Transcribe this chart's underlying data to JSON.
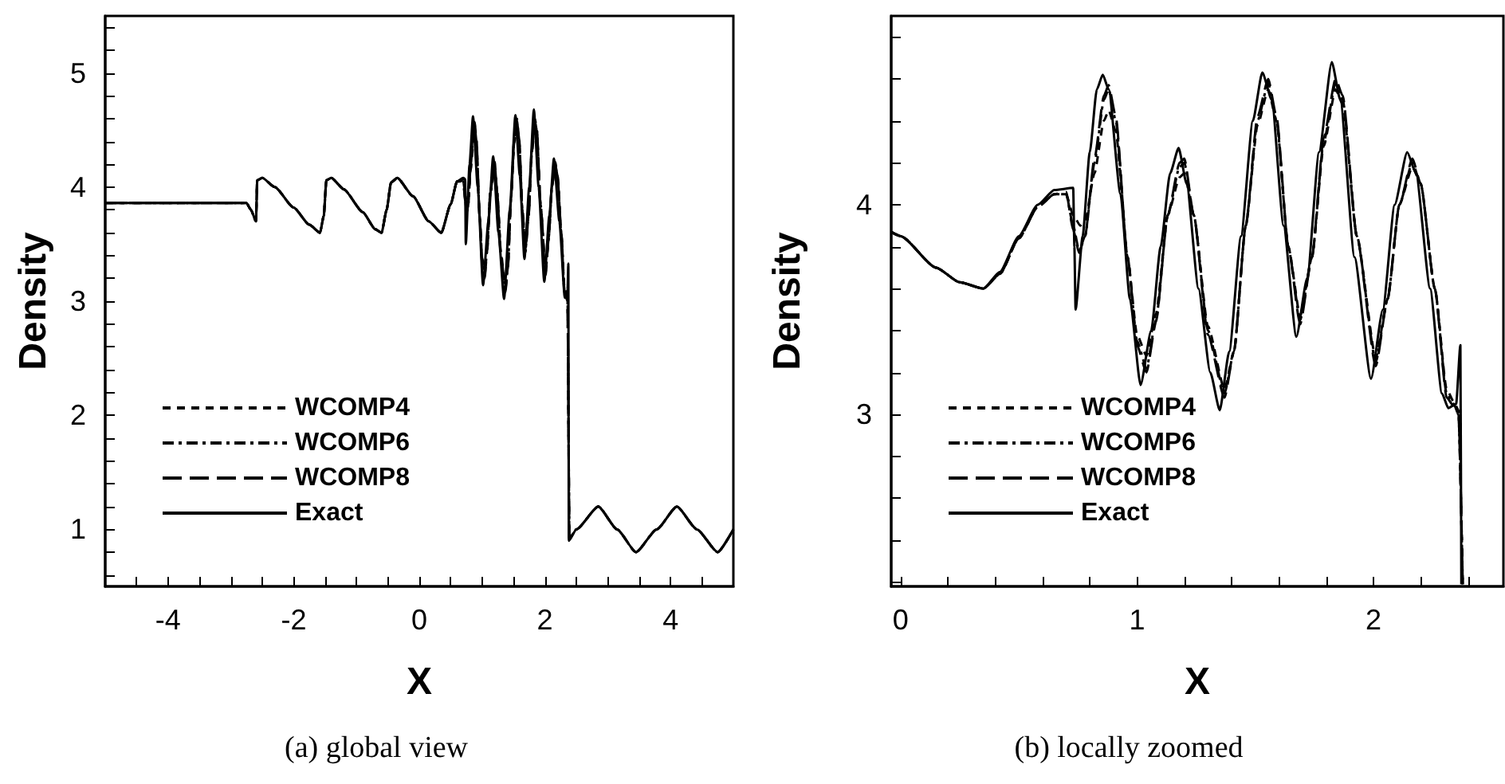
{
  "chart_data": [
    {
      "type": "line",
      "title": "(a) global view",
      "xlabel": "X",
      "ylabel": "Density",
      "xlim": [
        -5,
        5
      ],
      "ylim": [
        0.5,
        5.5
      ],
      "xticks": [
        {
          "value": -4.5,
          "label": null
        },
        -4,
        {
          "value": -3.5,
          "label": null
        },
        {
          "value": -3,
          "label": null
        },
        {
          "value": -2.5,
          "label": null
        },
        -2,
        {
          "value": -1.5,
          "label": null
        },
        {
          "value": -1,
          "label": null
        },
        {
          "value": -0.5,
          "label": null
        },
        0,
        {
          "value": 0.5,
          "label": null
        },
        {
          "value": 1,
          "label": null
        },
        {
          "value": 1.5,
          "label": null
        },
        2,
        {
          "value": 2.5,
          "label": null
        },
        {
          "value": 3,
          "label": null
        },
        {
          "value": 3.5,
          "label": null
        },
        4,
        {
          "value": 4.5,
          "label": null
        }
      ],
      "yticks": [
        {
          "value": 0.6,
          "label": null
        },
        {
          "value": 0.8,
          "label": null
        },
        1,
        {
          "value": 1.2,
          "label": null
        },
        {
          "value": 1.4,
          "label": null
        },
        {
          "value": 1.6,
          "label": null
        },
        {
          "value": 1.8,
          "label": null
        },
        2,
        {
          "value": 2.2,
          "label": null
        },
        {
          "value": 2.4,
          "label": null
        },
        {
          "value": 2.6,
          "label": null
        },
        {
          "value": 2.8,
          "label": null
        },
        3,
        {
          "value": 3.2,
          "label": null
        },
        {
          "value": 3.4,
          "label": null
        },
        {
          "value": 3.6,
          "label": null
        },
        {
          "value": 3.8,
          "label": null
        },
        4,
        {
          "value": 4.2,
          "label": null
        },
        {
          "value": 4.4,
          "label": null
        },
        {
          "value": 4.6,
          "label": null
        },
        {
          "value": 4.8,
          "label": null
        },
        5,
        {
          "value": 5.2,
          "label": null
        },
        {
          "value": 5.4,
          "label": null
        }
      ],
      "grid": false,
      "legend": "bottom left",
      "marker": "none",
      "series": [
        {
          "name": "WCOMP4",
          "color": "#000000",
          "line_style": "dashed",
          "x": [
            -5,
            -2.75,
            -2.68,
            -2.6,
            -2.58,
            -2.5,
            -2.3,
            -2,
            -1.75,
            -1.58,
            -1.52,
            -1.48,
            -1.4,
            -1.2,
            -0.9,
            -0.7,
            -0.6,
            -0.52,
            -0.45,
            -0.35,
            -0.1,
            0.15,
            0.35,
            0.5,
            0.6,
            0.65,
            0.7,
            0.73,
            0.755,
            0.78,
            0.82,
            0.86,
            0.88,
            0.91,
            0.96,
            1,
            1.04,
            1.08,
            1.13,
            1.2,
            1.24,
            1.3,
            1.37,
            1.41,
            1.46,
            1.51,
            1.555,
            1.59,
            1.64,
            1.69,
            1.74,
            1.79,
            1.84,
            1.87,
            1.93,
            2.01,
            2.06,
            2.11,
            2.165,
            2.2,
            2.26,
            2.31,
            2.36,
            2.39,
            2.5,
            2.85,
            3.15,
            3.45,
            3.78,
            4.1,
            4.42,
            4.75,
            5
          ],
          "values": [
            3.86,
            3.86,
            3.8,
            3.7,
            4.06,
            4.08,
            4,
            3.82,
            3.67,
            3.6,
            3.75,
            4.06,
            4.08,
            3.98,
            3.78,
            3.63,
            3.6,
            3.8,
            4.04,
            4.08,
            3.92,
            3.7,
            3.6,
            3.85,
            4.05,
            4.05,
            4.05,
            3.95,
            3.9,
            3.92,
            4.15,
            4.4,
            4.45,
            4.35,
            3.75,
            3.38,
            3.28,
            3.48,
            3.95,
            4.15,
            3.95,
            3.42,
            3.12,
            3.3,
            3.9,
            4.38,
            4.55,
            4.4,
            3.8,
            3.47,
            3.75,
            4.28,
            4.55,
            4.48,
            3.85,
            3.27,
            3.55,
            4,
            4.18,
            4.1,
            3.6,
            3.12,
            3.02,
            0.92,
            1,
            1.2,
            1,
            0.8,
            1,
            1.2,
            1,
            0.8,
            1
          ]
        },
        {
          "name": "WCOMP6",
          "color": "#000000",
          "line_style": "dashdot",
          "x": [
            -5,
            -2.75,
            -2.68,
            -2.6,
            -2.58,
            -2.5,
            -2.3,
            -2,
            -1.75,
            -1.58,
            -1.52,
            -1.48,
            -1.4,
            -1.2,
            -0.9,
            -0.7,
            -0.6,
            -0.52,
            -0.45,
            -0.35,
            -0.1,
            0.15,
            0.35,
            0.5,
            0.6,
            0.65,
            0.7,
            0.73,
            0.755,
            0.78,
            0.82,
            0.86,
            0.88,
            0.91,
            0.96,
            1,
            1.04,
            1.08,
            1.13,
            1.2,
            1.24,
            1.3,
            1.37,
            1.41,
            1.46,
            1.51,
            1.555,
            1.59,
            1.64,
            1.69,
            1.74,
            1.79,
            1.84,
            1.87,
            1.93,
            2.01,
            2.06,
            2.11,
            2.165,
            2.2,
            2.26,
            2.31,
            2.36,
            2.39,
            2.5,
            2.85,
            3.15,
            3.45,
            3.78,
            4.1,
            4.42,
            4.75,
            5
          ],
          "values": [
            3.86,
            3.86,
            3.8,
            3.7,
            4.06,
            4.08,
            4,
            3.82,
            3.67,
            3.6,
            3.75,
            4.06,
            4.08,
            3.98,
            3.78,
            3.63,
            3.6,
            3.8,
            4.04,
            4.08,
            3.92,
            3.7,
            3.6,
            3.85,
            4.05,
            4.05,
            4.05,
            3.9,
            3.78,
            3.85,
            4.2,
            4.5,
            4.55,
            4.4,
            3.75,
            3.35,
            3.22,
            3.45,
            3.95,
            4.2,
            3.95,
            3.4,
            3.1,
            3.3,
            3.9,
            4.4,
            4.58,
            4.4,
            3.8,
            3.45,
            3.75,
            4.3,
            4.58,
            4.5,
            3.85,
            3.25,
            3.55,
            4,
            4.2,
            4.1,
            3.6,
            3.1,
            3,
            0.92,
            1,
            1.2,
            1,
            0.8,
            1,
            1.2,
            1,
            0.8,
            1
          ]
        },
        {
          "name": "WCOMP8",
          "color": "#000000",
          "line_style": "longdash",
          "x": [
            -5,
            -2.75,
            -2.68,
            -2.6,
            -2.58,
            -2.5,
            -2.3,
            -2,
            -1.75,
            -1.58,
            -1.52,
            -1.48,
            -1.4,
            -1.2,
            -0.9,
            -0.7,
            -0.6,
            -0.52,
            -0.45,
            -0.35,
            -0.1,
            0.15,
            0.35,
            0.5,
            0.6,
            0.65,
            0.7,
            0.73,
            0.755,
            0.78,
            0.82,
            0.86,
            0.88,
            0.91,
            0.96,
            1,
            1.04,
            1.08,
            1.13,
            1.2,
            1.24,
            1.3,
            1.37,
            1.41,
            1.46,
            1.51,
            1.555,
            1.59,
            1.64,
            1.69,
            1.74,
            1.79,
            1.84,
            1.87,
            1.93,
            2.01,
            2.06,
            2.11,
            2.165,
            2.2,
            2.26,
            2.31,
            2.36,
            2.39,
            2.5,
            2.85,
            3.15,
            3.45,
            3.78,
            4.1,
            4.42,
            4.75,
            5
          ],
          "values": [
            3.86,
            3.86,
            3.8,
            3.7,
            4.06,
            4.08,
            4,
            3.82,
            3.67,
            3.6,
            3.75,
            4.06,
            4.08,
            3.98,
            3.78,
            3.63,
            3.6,
            3.8,
            4.04,
            4.08,
            3.92,
            3.7,
            3.6,
            3.85,
            4.05,
            4.05,
            4.06,
            3.88,
            3.77,
            3.85,
            4.22,
            4.52,
            4.57,
            4.42,
            3.75,
            3.33,
            3.2,
            3.44,
            3.95,
            4.22,
            3.95,
            3.38,
            3.08,
            3.3,
            3.9,
            4.42,
            4.6,
            4.42,
            3.8,
            3.43,
            3.75,
            4.32,
            4.6,
            4.52,
            3.85,
            3.23,
            3.55,
            4,
            4.22,
            4.1,
            3.6,
            3.08,
            3,
            0.92,
            1,
            1.2,
            1,
            0.8,
            1,
            1.2,
            1,
            0.8,
            1
          ]
        },
        {
          "name": "Exact",
          "color": "#000000",
          "line_style": "solid",
          "x": [
            -5,
            -2.75,
            -2.68,
            -2.6,
            -2.58,
            -2.5,
            -2.3,
            -2,
            -1.75,
            -1.58,
            -1.52,
            -1.48,
            -1.4,
            -1.2,
            -0.9,
            -0.7,
            -0.6,
            -0.52,
            -0.45,
            -0.35,
            -0.1,
            0.15,
            0.35,
            0.5,
            0.6,
            0.7,
            0.73,
            0.74,
            0.8,
            0.855,
            0.93,
            1.015,
            1.1,
            1.176,
            1.26,
            1.35,
            1.44,
            1.53,
            1.6,
            1.674,
            1.75,
            1.824,
            1.9,
            1.99,
            2.07,
            2.143,
            2.23,
            2.317,
            2.36,
            2.373,
            2.38,
            2.5,
            2.85,
            3.15,
            3.45,
            3.78,
            4.1,
            4.42,
            4.75,
            5
          ],
          "values": [
            3.86,
            3.86,
            3.8,
            3.7,
            4.06,
            4.08,
            4,
            3.82,
            3.67,
            3.6,
            3.75,
            4.06,
            4.08,
            3.98,
            3.78,
            3.63,
            3.6,
            3.8,
            4.04,
            4.08,
            3.92,
            3.7,
            3.6,
            3.85,
            4.05,
            4.08,
            4.07,
            3.5,
            4.2,
            4.62,
            4,
            3.14,
            3.7,
            4.27,
            3.6,
            3.02,
            3.8,
            4.63,
            4.1,
            3.37,
            4,
            4.68,
            4,
            3.17,
            3.75,
            4.25,
            3.7,
            3.03,
            3.1,
            3.33,
            0.9,
            1,
            1.2,
            1,
            0.8,
            1,
            1.2,
            1,
            0.8,
            1
          ]
        }
      ]
    },
    {
      "type": "line",
      "title": "(b) locally zoomed",
      "xlabel": "X",
      "ylabel": "Density",
      "xlim": [
        -0.04,
        2.55
      ],
      "ylim": [
        2.18,
        4.9
      ],
      "xticks": [
        0,
        {
          "value": 0.2,
          "label": null
        },
        {
          "value": 0.4,
          "label": null
        },
        {
          "value": 0.6,
          "label": null
        },
        {
          "value": 0.8,
          "label": null
        },
        1,
        {
          "value": 1.2,
          "label": null
        },
        {
          "value": 1.4,
          "label": null
        },
        {
          "value": 1.6,
          "label": null
        },
        {
          "value": 1.8,
          "label": null
        },
        2,
        {
          "value": 2.2,
          "label": null
        },
        {
          "value": 2.4,
          "label": null
        }
      ],
      "yticks": [
        {
          "value": 2.2,
          "label": null
        },
        {
          "value": 2.4,
          "label": null
        },
        {
          "value": 2.6,
          "label": null
        },
        {
          "value": 2.8,
          "label": null
        },
        3,
        {
          "value": 3.2,
          "label": null
        },
        {
          "value": 3.4,
          "label": null
        },
        {
          "value": 3.6,
          "label": null
        },
        {
          "value": 3.8,
          "label": null
        },
        4,
        {
          "value": 4.2,
          "label": null
        },
        {
          "value": 4.4,
          "label": null
        },
        {
          "value": 4.6,
          "label": null
        },
        {
          "value": 4.8,
          "label": null
        }
      ],
      "grid": false,
      "legend": "bottom left",
      "marker": "none",
      "series": [
        {
          "name": "WCOMP4",
          "color": "#000000",
          "line_style": "dashed",
          "x": [
            -0.04,
            0,
            0.15,
            0.25,
            0.35,
            0.42,
            0.5,
            0.58,
            0.65,
            0.7,
            0.73,
            0.76,
            0.78,
            0.82,
            0.86,
            0.88,
            0.91,
            0.96,
            1,
            1.04,
            1.08,
            1.13,
            1.18,
            1.2,
            1.24,
            1.3,
            1.37,
            1.41,
            1.46,
            1.51,
            1.555,
            1.59,
            1.64,
            1.69,
            1.74,
            1.79,
            1.84,
            1.87,
            1.93,
            2.01,
            2.06,
            2.11,
            2.165,
            2.2,
            2.26,
            2.31,
            2.34,
            2.36,
            2.378
          ],
          "values": [
            3.87,
            3.85,
            3.7,
            3.63,
            3.6,
            3.67,
            3.84,
            3.99,
            4.05,
            4.05,
            3.95,
            3.9,
            3.92,
            4.15,
            4.4,
            4.45,
            4.35,
            3.75,
            3.38,
            3.28,
            3.48,
            3.95,
            4.13,
            4.15,
            3.95,
            3.42,
            3.12,
            3.3,
            3.9,
            4.38,
            4.55,
            4.4,
            3.8,
            3.47,
            3.75,
            4.28,
            4.55,
            4.48,
            3.85,
            3.27,
            3.55,
            4,
            4.18,
            4.1,
            3.6,
            3.12,
            3.06,
            3.02,
            2.19
          ]
        },
        {
          "name": "WCOMP6",
          "color": "#000000",
          "line_style": "dashdot",
          "x": [
            -0.04,
            0,
            0.15,
            0.25,
            0.35,
            0.42,
            0.5,
            0.58,
            0.65,
            0.7,
            0.73,
            0.755,
            0.78,
            0.82,
            0.86,
            0.88,
            0.91,
            0.96,
            1,
            1.04,
            1.08,
            1.13,
            1.18,
            1.2,
            1.24,
            1.3,
            1.37,
            1.41,
            1.46,
            1.51,
            1.555,
            1.59,
            1.64,
            1.69,
            1.74,
            1.79,
            1.84,
            1.87,
            1.93,
            2.01,
            2.06,
            2.11,
            2.165,
            2.2,
            2.26,
            2.31,
            2.34,
            2.36,
            2.378
          ],
          "values": [
            3.87,
            3.85,
            3.7,
            3.63,
            3.6,
            3.67,
            3.84,
            3.99,
            4.05,
            4.05,
            3.9,
            3.78,
            3.85,
            4.2,
            4.5,
            4.55,
            4.4,
            3.75,
            3.35,
            3.22,
            3.45,
            3.95,
            4.18,
            4.2,
            3.95,
            3.4,
            3.1,
            3.3,
            3.9,
            4.4,
            4.58,
            4.4,
            3.8,
            3.45,
            3.75,
            4.3,
            4.58,
            4.5,
            3.85,
            3.25,
            3.55,
            4,
            4.2,
            4.1,
            3.6,
            3.1,
            3.05,
            3,
            2.19
          ]
        },
        {
          "name": "WCOMP8",
          "color": "#000000",
          "line_style": "longdash",
          "x": [
            -0.04,
            0,
            0.15,
            0.25,
            0.35,
            0.42,
            0.5,
            0.58,
            0.65,
            0.7,
            0.73,
            0.755,
            0.78,
            0.82,
            0.86,
            0.88,
            0.91,
            0.96,
            1,
            1.04,
            1.08,
            1.13,
            1.18,
            1.2,
            1.24,
            1.3,
            1.37,
            1.41,
            1.46,
            1.51,
            1.555,
            1.59,
            1.64,
            1.69,
            1.74,
            1.79,
            1.84,
            1.87,
            1.93,
            2.01,
            2.06,
            2.11,
            2.165,
            2.2,
            2.26,
            2.31,
            2.34,
            2.36,
            2.378
          ],
          "values": [
            3.87,
            3.85,
            3.7,
            3.63,
            3.6,
            3.67,
            3.84,
            3.99,
            4.05,
            4.06,
            3.88,
            3.77,
            3.85,
            4.22,
            4.52,
            4.57,
            4.42,
            3.75,
            3.33,
            3.2,
            3.44,
            3.95,
            4.2,
            4.22,
            3.95,
            3.38,
            3.08,
            3.3,
            3.9,
            4.42,
            4.6,
            4.42,
            3.8,
            3.43,
            3.75,
            4.32,
            4.6,
            4.52,
            3.85,
            3.23,
            3.55,
            4,
            4.22,
            4.1,
            3.6,
            3.08,
            3.04,
            3,
            2.19
          ]
        },
        {
          "name": "Exact",
          "color": "#000000",
          "line_style": "solid",
          "x": [
            -0.04,
            0,
            0.15,
            0.25,
            0.35,
            0.42,
            0.5,
            0.58,
            0.65,
            0.73,
            0.735,
            0.74,
            0.77,
            0.8,
            0.83,
            0.855,
            0.88,
            0.93,
            0.97,
            1.015,
            1.06,
            1.1,
            1.14,
            1.176,
            1.21,
            1.26,
            1.31,
            1.35,
            1.39,
            1.44,
            1.49,
            1.53,
            1.57,
            1.62,
            1.674,
            1.72,
            1.77,
            1.824,
            1.86,
            1.92,
            1.99,
            2.04,
            2.09,
            2.143,
            2.18,
            2.24,
            2.29,
            2.317,
            2.35,
            2.368,
            2.372
          ],
          "values": [
            3.87,
            3.85,
            3.7,
            3.63,
            3.6,
            3.68,
            3.85,
            4,
            4.07,
            4.08,
            3.8,
            3.5,
            3.85,
            4.25,
            4.55,
            4.62,
            4.55,
            4.05,
            3.55,
            3.14,
            3.4,
            3.8,
            4.15,
            4.27,
            4.1,
            3.6,
            3.2,
            3.02,
            3.3,
            3.85,
            4.4,
            4.63,
            4.5,
            3.9,
            3.37,
            3.65,
            4.25,
            4.68,
            4.5,
            3.75,
            3.17,
            3.5,
            4,
            4.25,
            4.15,
            3.6,
            3.1,
            3.03,
            3.05,
            3.33,
            2.19
          ]
        }
      ]
    }
  ]
}
